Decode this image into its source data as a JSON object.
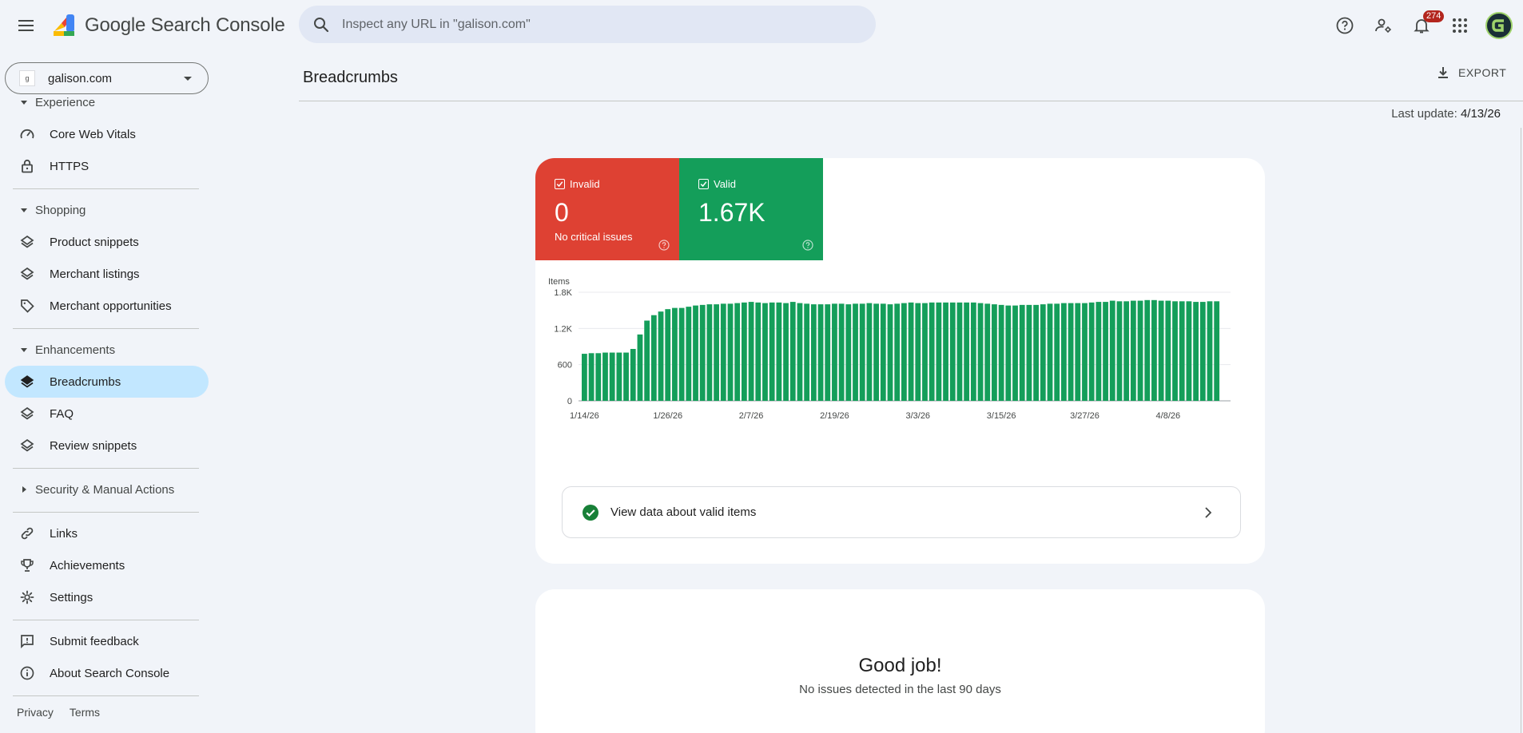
{
  "app": {
    "logo_google": "Google",
    "logo_product": " Search Console"
  },
  "search": {
    "placeholder": "Inspect any URL in \"galison.com\""
  },
  "notifications": {
    "count": "274"
  },
  "property": {
    "name": "galison.com",
    "favicon_text": "g"
  },
  "sidebar": {
    "sections": {
      "experience": "Experience",
      "shopping": "Shopping",
      "enhancements": "Enhancements",
      "security": "Security & Manual Actions"
    },
    "items": {
      "core_web_vitals": "Core Web Vitals",
      "https": "HTTPS",
      "product_snippets": "Product snippets",
      "merchant_listings": "Merchant listings",
      "merchant_opportunities": "Merchant opportunities",
      "breadcrumbs": "Breadcrumbs",
      "faq": "FAQ",
      "review_snippets": "Review snippets",
      "links": "Links",
      "achievements": "Achievements",
      "settings": "Settings",
      "submit_feedback": "Submit feedback",
      "about": "About Search Console"
    },
    "footer": {
      "privacy": "Privacy",
      "terms": "Terms"
    }
  },
  "page": {
    "title": "Breadcrumbs",
    "export_label": "EXPORT",
    "last_update_label": "Last update: ",
    "last_update_value": "4/13/26"
  },
  "tiles": {
    "invalid": {
      "label": "Invalid",
      "value": "0",
      "sub": "No critical issues",
      "color": "#de4133"
    },
    "valid": {
      "label": "Valid",
      "value": "1.67K",
      "color": "#149e5a"
    }
  },
  "chart_data": {
    "type": "bar",
    "ylabel": "Items",
    "ylim": [
      0,
      1800
    ],
    "yticks": [
      0,
      600,
      1200,
      1800
    ],
    "ytick_labels": [
      "0",
      "600",
      "1.2K",
      "1.8K"
    ],
    "x_tick_labels": [
      "1/14/26",
      "1/26/26",
      "2/7/26",
      "2/19/26",
      "3/3/26",
      "3/15/26",
      "3/27/26",
      "4/8/26"
    ],
    "x_tick_indices": [
      0,
      12,
      24,
      36,
      48,
      60,
      72,
      84
    ],
    "color": "#149e5a",
    "series": [
      {
        "values": [
          780,
          790,
          790,
          800,
          800,
          800,
          800,
          860,
          1100,
          1330,
          1420,
          1480,
          1520,
          1540,
          1540,
          1560,
          1580,
          1590,
          1600,
          1600,
          1610,
          1610,
          1620,
          1630,
          1640,
          1630,
          1620,
          1630,
          1630,
          1620,
          1640,
          1620,
          1610,
          1600,
          1600,
          1600,
          1610,
          1610,
          1600,
          1610,
          1610,
          1620,
          1610,
          1610,
          1600,
          1610,
          1620,
          1630,
          1620,
          1620,
          1630,
          1630,
          1630,
          1630,
          1630,
          1630,
          1630,
          1620,
          1610,
          1600,
          1590,
          1580,
          1580,
          1590,
          1590,
          1590,
          1600,
          1610,
          1610,
          1620,
          1620,
          1620,
          1620,
          1630,
          1640,
          1640,
          1660,
          1650,
          1650,
          1660,
          1660,
          1670,
          1670,
          1660,
          1660,
          1650,
          1650,
          1650,
          1640,
          1640,
          1650,
          1650
        ]
      }
    ]
  },
  "valid_row": {
    "label": "View data about valid items"
  },
  "good_job": {
    "title": "Good job!",
    "subtitle": "No issues detected in the last 90 days"
  }
}
